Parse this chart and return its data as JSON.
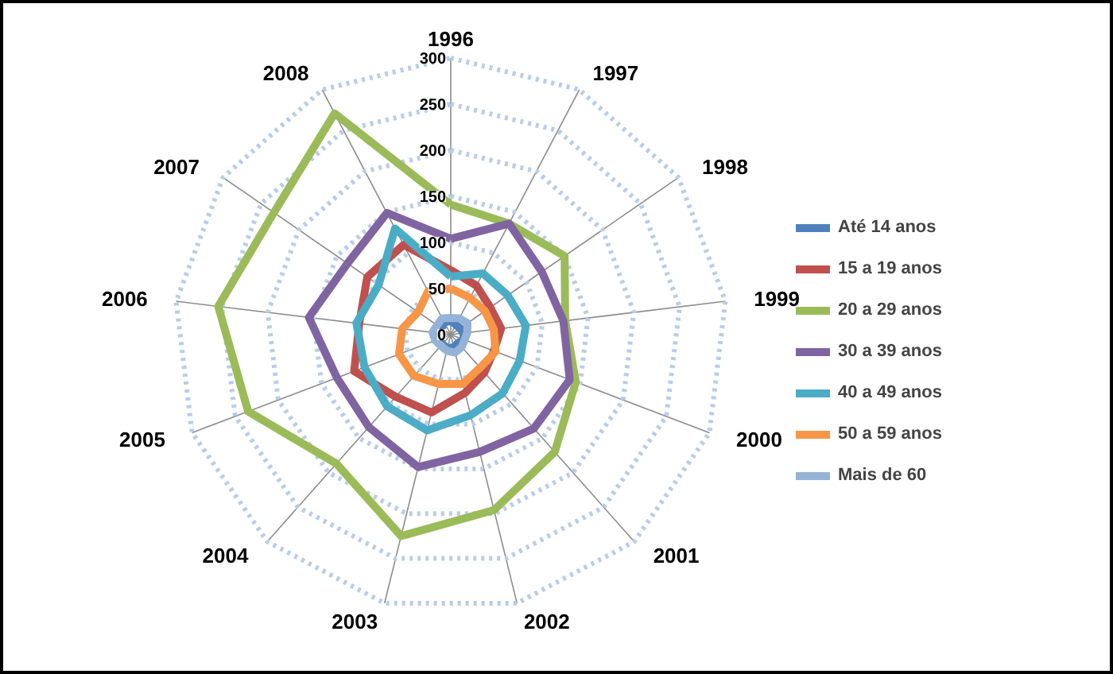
{
  "chart_data": {
    "type": "radar",
    "categories": [
      "1996",
      "1997",
      "1998",
      "1999",
      "2000",
      "2001",
      "2002",
      "2003",
      "2004",
      "2005",
      "2006",
      "2007",
      "2008"
    ],
    "series": [
      {
        "name": "Até 14 anos",
        "color": "#4f81bd",
        "values": [
          15,
          12,
          12,
          14,
          15,
          12,
          14,
          15,
          14,
          12,
          14,
          12,
          15
        ]
      },
      {
        "name": "15 a 19 anos",
        "color": "#c0504d",
        "values": [
          70,
          60,
          52,
          55,
          50,
          55,
          65,
          87,
          90,
          112,
          100,
          110,
          110
        ]
      },
      {
        "name": "20 a 29 anos",
        "color": "#9bbb59",
        "values": [
          141,
          136,
          150,
          125,
          145,
          170,
          196,
          225,
          187,
          235,
          254,
          233,
          271
        ]
      },
      {
        "name": "30 a 39 anos",
        "color": "#8064a2",
        "values": [
          104,
          136,
          120,
          123,
          138,
          136,
          131,
          148,
          134,
          132,
          155,
          136,
          149
        ]
      },
      {
        "name": "40 a 49 anos",
        "color": "#4bacc6",
        "values": [
          63,
          75,
          75,
          82,
          80,
          85,
          90,
          107,
          104,
          100,
          103,
          95,
          130
        ]
      },
      {
        "name": "50 a 59 anos",
        "color": "#f79646",
        "values": [
          50,
          45,
          45,
          47,
          52,
          48,
          55,
          55,
          60,
          60,
          53,
          43,
          53
        ]
      },
      {
        "name": "Mais de 60",
        "color": "#95b3d7",
        "values": [
          18,
          20,
          22,
          18,
          16,
          18,
          20,
          18,
          16,
          18,
          20,
          18,
          20
        ]
      }
    ],
    "ylim": [
      0,
      300
    ],
    "yticks": [
      0,
      50,
      100,
      150,
      200,
      250,
      300
    ],
    "grid": true,
    "legend": "right",
    "marker": "none",
    "line_style": "solid"
  }
}
